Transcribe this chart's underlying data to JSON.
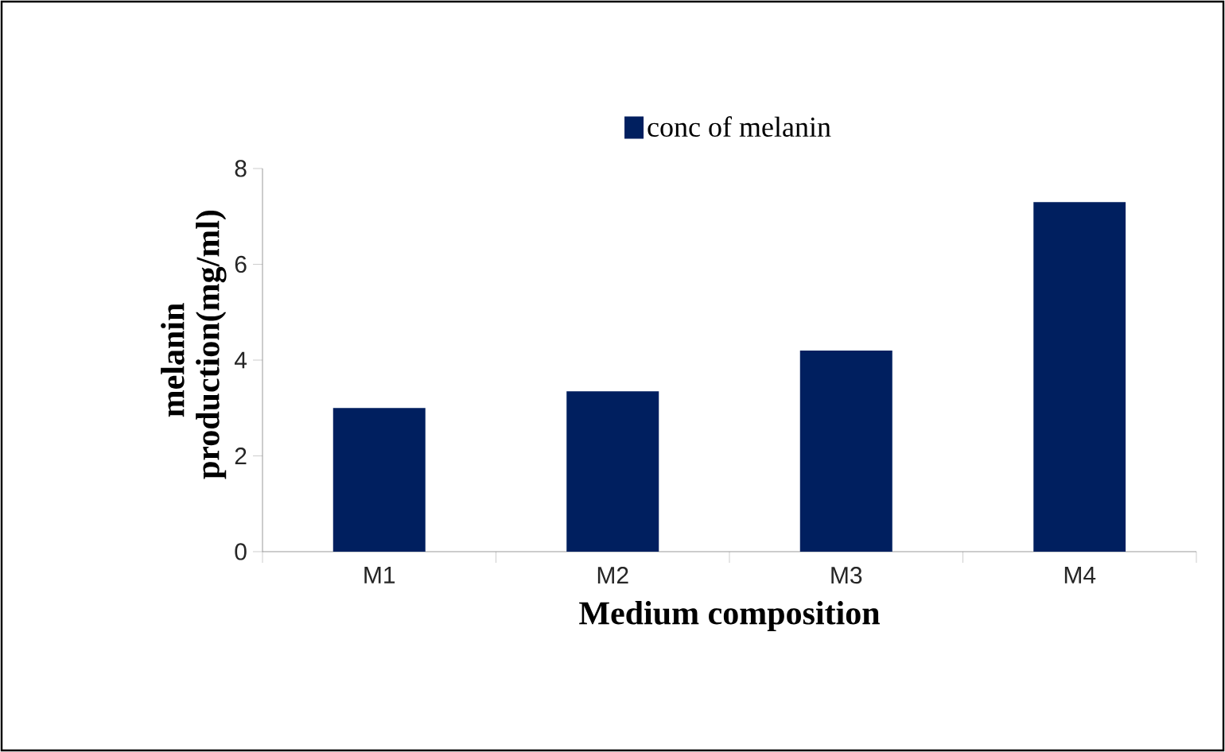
{
  "chart_data": {
    "type": "bar",
    "categories": [
      "M1",
      "M2",
      "M3",
      "M4"
    ],
    "series": [
      {
        "name": "conc of melanin",
        "color": "#001f5f",
        "values": [
          3.0,
          3.35,
          4.2,
          7.3
        ]
      }
    ],
    "xlabel": "Medium composition",
    "ylabel": "melanin production(mg/ml)",
    "ylim": [
      0,
      8
    ],
    "yticks": [
      0,
      2,
      4,
      6,
      8
    ],
    "legend": "top",
    "grid": false
  }
}
